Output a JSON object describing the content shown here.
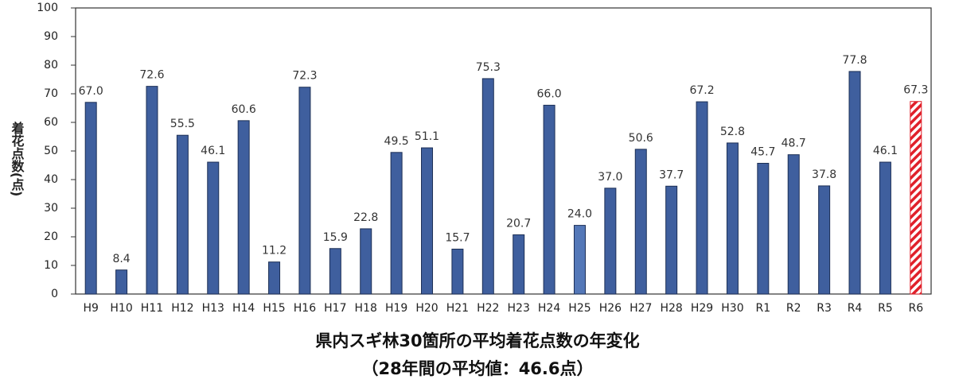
{
  "chart_data": {
    "type": "bar",
    "title": "県内スギ林30箇所の平均着花点数の年変化",
    "subtitle": "（28年間の平均値：46.6点）",
    "y_label": "着花点数(点)",
    "categories": [
      "H9",
      "H10",
      "H11",
      "H12",
      "H13",
      "H14",
      "H15",
      "H16",
      "H17",
      "H18",
      "H19",
      "H20",
      "H21",
      "H22",
      "H23",
      "H24",
      "H25",
      "H26",
      "H27",
      "H28",
      "H29",
      "H30",
      "R1",
      "R2",
      "R3",
      "R4",
      "R5",
      "R6"
    ],
    "values": [
      67.0,
      8.4,
      72.6,
      55.5,
      46.1,
      60.6,
      11.2,
      72.3,
      15.9,
      22.8,
      49.5,
      51.1,
      15.7,
      75.3,
      20.7,
      66.0,
      24.0,
      37.0,
      50.6,
      37.7,
      67.2,
      52.8,
      45.7,
      48.7,
      37.8,
      77.8,
      46.1,
      67.3
    ],
    "value_labels": [
      "67.0",
      "8.4",
      "72.6",
      "55.5",
      "46.1",
      "60.6",
      "11.2",
      "72.3",
      "15.9",
      "22.8",
      "49.5",
      "51.1",
      "15.7",
      "75.3",
      "20.7",
      "66.0",
      "24.0",
      "37.0",
      "50.6",
      "37.7",
      "67.2",
      "52.8",
      "45.7",
      "48.7",
      "37.8",
      "77.8",
      "46.1",
      "67.3"
    ],
    "colors": [
      "#3f5f9e",
      "#3f5f9e",
      "#3f5f9e",
      "#3f5f9e",
      "#3f5f9e",
      "#3f5f9e",
      "#3f5f9e",
      "#3f5f9e",
      "#3f5f9e",
      "#3f5f9e",
      "#3f5f9e",
      "#3f5f9e",
      "#3f5f9e",
      "#3f5f9e",
      "#3f5f9e",
      "#3f5f9e",
      "#5478b8",
      "#3f5f9e",
      "#3f5f9e",
      "#3f5f9e",
      "#3f5f9e",
      "#3f5f9e",
      "#3f5f9e",
      "#3f5f9e",
      "#3f5f9e",
      "#3f5f9e",
      "#3f5f9e",
      "#e0202a"
    ],
    "hatched": [
      27
    ],
    "ylim": [
      0,
      100
    ],
    "yticks": [
      0,
      10,
      20,
      30,
      40,
      50,
      60,
      70,
      80,
      90,
      100
    ],
    "grid": false
  }
}
